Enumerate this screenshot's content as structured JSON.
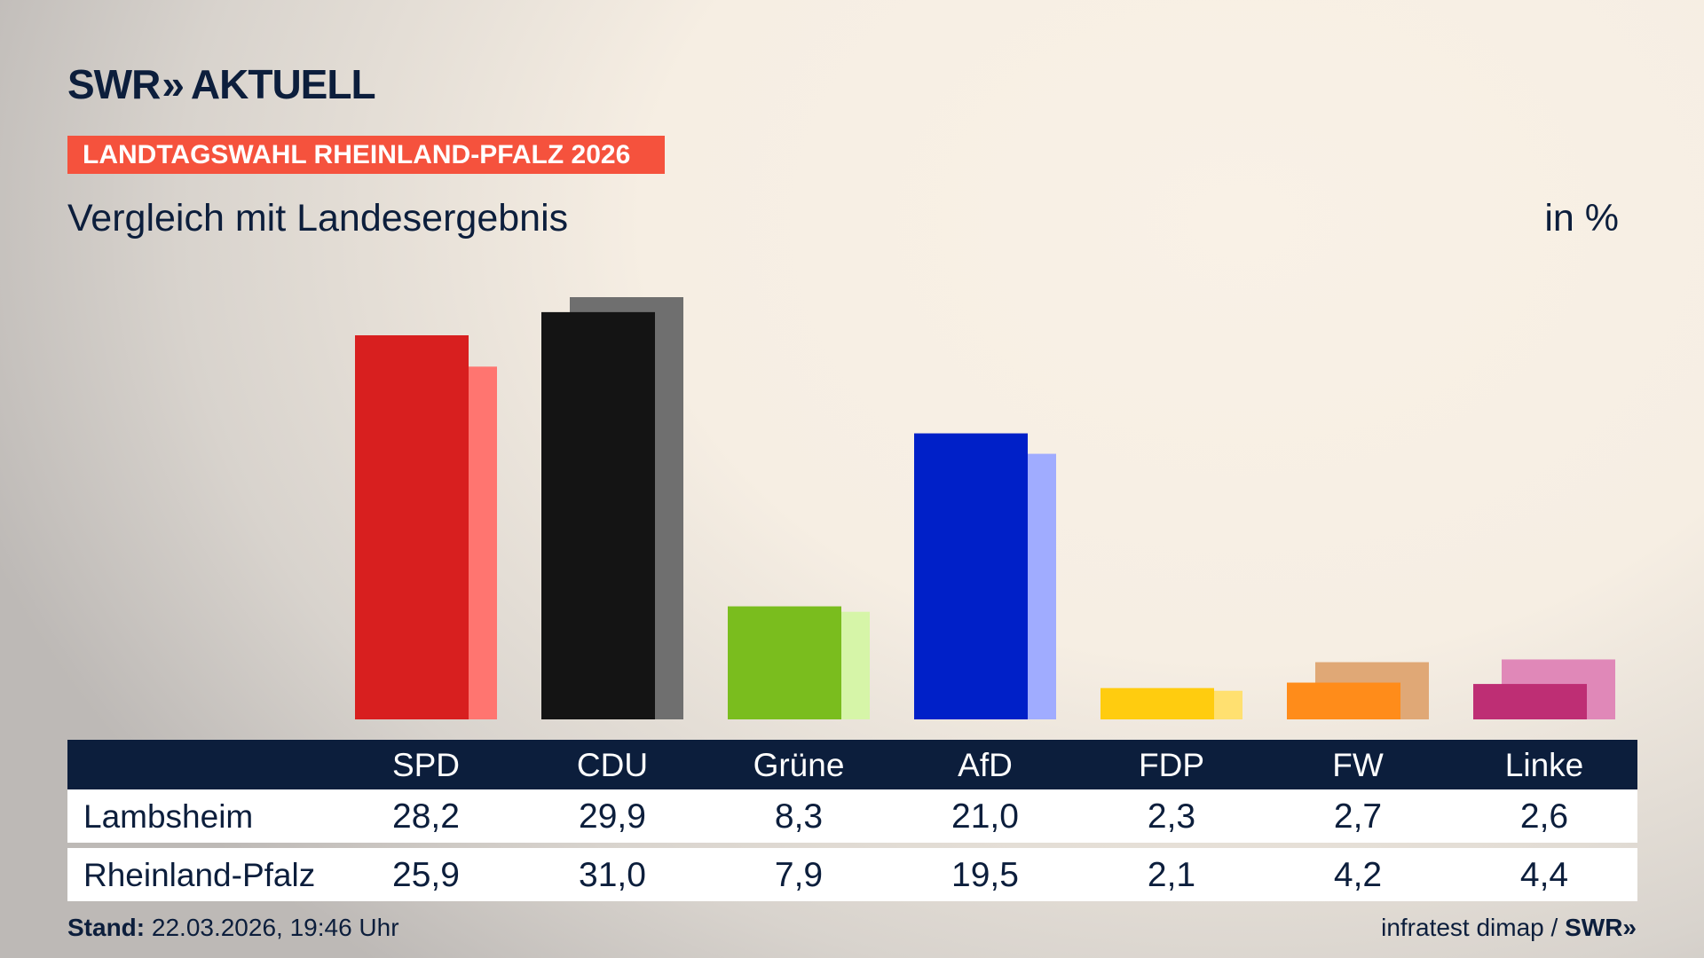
{
  "header": {
    "logo": "SWR AKTUELL",
    "logo_left": "SWR",
    "logo_chevron": "»",
    "logo_right": "AKTUELL",
    "banner": "LANDTAGSWAHL RHEINLAND-PFALZ 2026",
    "subtitle": "Vergleich mit Landesergebnis",
    "unit": "in %"
  },
  "chart_data": {
    "type": "bar",
    "categories": [
      "SPD",
      "CDU",
      "Grüne",
      "AfD",
      "FDP",
      "FW",
      "Linke"
    ],
    "series": [
      {
        "name": "Lambsheim",
        "values": [
          28.2,
          29.9,
          8.3,
          21.0,
          2.3,
          2.7,
          2.6
        ],
        "colors": [
          "#d81f1f",
          "#141414",
          "#7abd1e",
          "#0020c8",
          "#ffcc0f",
          "#ff8c1a",
          "#be2e74"
        ]
      },
      {
        "name": "Rheinland-Pfalz",
        "values": [
          25.9,
          31.0,
          7.9,
          19.5,
          2.1,
          4.2,
          4.4
        ],
        "colors": [
          "#ff7570",
          "#6f6f6f",
          "#d6f5a8",
          "#a0acff",
          "#ffe070",
          "#e0a876",
          "#e088b8"
        ]
      }
    ],
    "ylim": [
      0,
      31
    ],
    "grid": false
  },
  "table": {
    "headers": [
      "SPD",
      "CDU",
      "Grüne",
      "AfD",
      "FDP",
      "FW",
      "Linke"
    ],
    "rows": [
      {
        "label": "Lambsheim",
        "values": [
          "28,2",
          "29,9",
          "8,3",
          "21,0",
          "2,3",
          "2,7",
          "2,6"
        ]
      },
      {
        "label": "Rheinland-Pfalz",
        "values": [
          "25,9",
          "31,0",
          "7,9",
          "19,5",
          "2,1",
          "4,2",
          "4,4"
        ]
      }
    ]
  },
  "footer": {
    "stand_label": "Stand:",
    "stand_value": "22.03.2026, 19:46 Uhr",
    "source": "infratest dimap /",
    "source_logo": "SWR»"
  },
  "colors": {
    "navy": "#0c1e3c",
    "banner": "#f5523d"
  }
}
